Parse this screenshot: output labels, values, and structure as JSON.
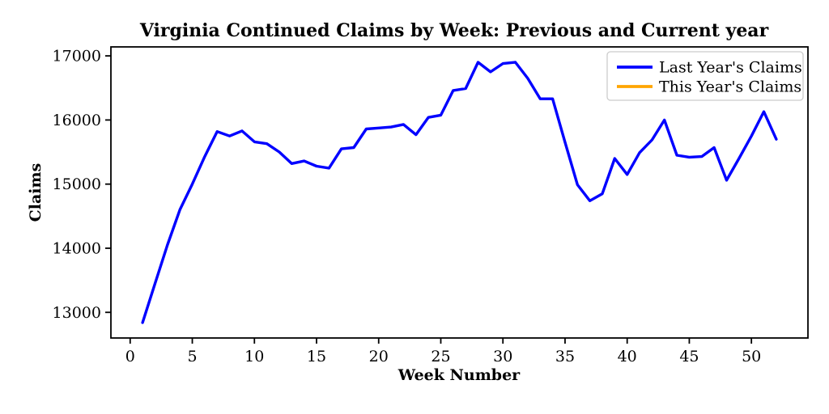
{
  "title": "Virginia Continued Claims by Week: Previous and Current year",
  "axes": {
    "xlabel": "Week Number",
    "ylabel": "Claims"
  },
  "legend": {
    "entries": [
      {
        "label": "Last Year's Claims",
        "color": "#0000ff"
      },
      {
        "label": "This Year's Claims",
        "color": "#ffa500"
      }
    ]
  },
  "colors": {
    "last_year_line": "#0000ff",
    "this_year_line": "#ffa500",
    "frame": "#000000",
    "background": "#ffffff",
    "legend_border": "#cccccc"
  },
  "chart_data": {
    "type": "line",
    "title": "Virginia Continued Claims by Week: Previous and Current year",
    "xlabel": "Week Number",
    "ylabel": "Claims",
    "x": [
      1,
      2,
      3,
      4,
      5,
      6,
      7,
      8,
      9,
      10,
      11,
      12,
      13,
      14,
      15,
      16,
      17,
      18,
      19,
      20,
      21,
      22,
      23,
      24,
      25,
      26,
      27,
      28,
      29,
      30,
      31,
      32,
      33,
      34,
      35,
      36,
      37,
      38,
      39,
      40,
      41,
      42,
      43,
      44,
      45,
      46,
      47,
      48,
      49,
      50,
      51,
      52
    ],
    "series": [
      {
        "name": "Last Year's Claims",
        "color": "#0000ff",
        "values": [
          12840,
          13450,
          14050,
          14600,
          15000,
          15430,
          15820,
          15750,
          15830,
          15660,
          15630,
          15500,
          15320,
          15360,
          15280,
          15250,
          15550,
          15570,
          15860,
          15875,
          15890,
          15930,
          15770,
          16040,
          16075,
          16460,
          16490,
          16900,
          16750,
          16880,
          16900,
          16650,
          16330,
          16330,
          15650,
          14990,
          14740,
          14850,
          15400,
          15150,
          15490,
          15690,
          16000,
          15450,
          15420,
          15430,
          15570,
          15060,
          15400,
          15750,
          16130,
          15700
        ]
      },
      {
        "name": "This Year's Claims",
        "color": "#ffa500",
        "values": []
      }
    ],
    "xlim": [
      -1.55,
      54.55
    ],
    "ylim": [
      12600,
      17140
    ],
    "xticks": [
      0,
      5,
      10,
      15,
      20,
      25,
      30,
      35,
      40,
      45,
      50
    ],
    "yticks": [
      13000,
      14000,
      15000,
      16000,
      17000
    ],
    "grid": false,
    "legend_position": "upper right"
  }
}
